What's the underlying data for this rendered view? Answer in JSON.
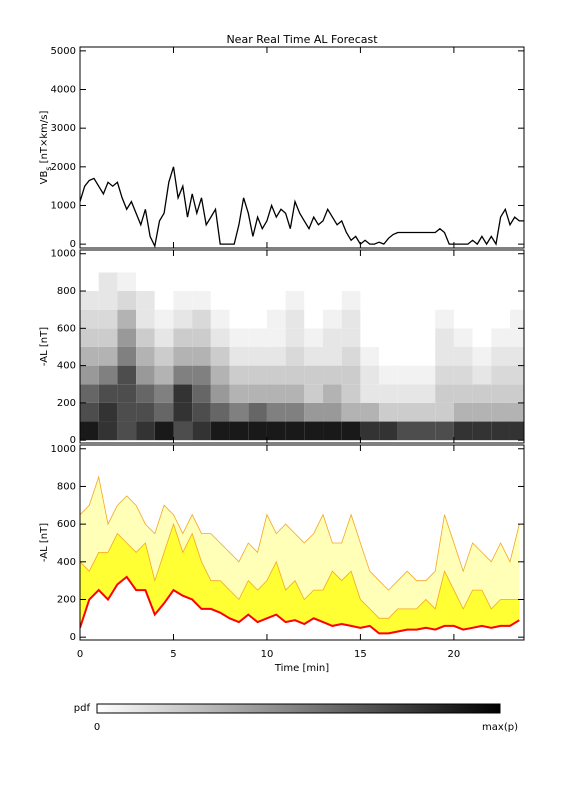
{
  "chart_data": [
    {
      "type": "line",
      "title": "Near Real Time AL Forecast",
      "ylabel": [
        "VB",
        "s",
        " [nT×km/s]"
      ],
      "color": "#000000",
      "xlim": [
        0,
        23.75
      ],
      "xticks": [
        0,
        5,
        10,
        15,
        20
      ],
      "ylim": [
        -100,
        5100
      ],
      "yticks": [
        0,
        1000,
        2000,
        3000,
        4000,
        5000
      ],
      "x": [
        0,
        0.25,
        0.5,
        0.75,
        1,
        1.25,
        1.5,
        1.75,
        2,
        2.25,
        2.5,
        2.75,
        3,
        3.25,
        3.5,
        3.75,
        4,
        4.25,
        4.5,
        4.75,
        5,
        5.25,
        5.5,
        5.75,
        6,
        6.25,
        6.5,
        6.75,
        7,
        7.25,
        7.5,
        7.75,
        8,
        8.25,
        8.5,
        8.75,
        9,
        9.25,
        9.5,
        9.75,
        10,
        10.25,
        10.5,
        10.75,
        11,
        11.25,
        11.5,
        11.75,
        12,
        12.25,
        12.5,
        12.75,
        13,
        13.25,
        13.5,
        13.75,
        14,
        14.25,
        14.5,
        14.75,
        15,
        15.25,
        15.5,
        15.75,
        16,
        16.25,
        16.5,
        16.75,
        17,
        17.25,
        17.5,
        17.75,
        18,
        18.25,
        18.5,
        18.75,
        19,
        19.25,
        19.5,
        19.75,
        20,
        20.25,
        20.5,
        20.75,
        21,
        21.25,
        21.5,
        21.75,
        22,
        22.25,
        22.5,
        22.75,
        23,
        23.25,
        23.5,
        23.75
      ],
      "values": [
        1100,
        1500,
        1650,
        1700,
        1500,
        1300,
        1600,
        1500,
        1600,
        1200,
        900,
        1100,
        800,
        500,
        900,
        200,
        -50,
        600,
        800,
        1600,
        2000,
        1200,
        1500,
        700,
        1300,
        800,
        1200,
        500,
        700,
        900,
        0,
        0,
        0,
        0,
        500,
        1200,
        800,
        200,
        700,
        400,
        600,
        1000,
        700,
        900,
        800,
        400,
        1100,
        800,
        600,
        400,
        700,
        500,
        600,
        900,
        700,
        500,
        600,
        300,
        100,
        200,
        0,
        100,
        0,
        0,
        50,
        0,
        150,
        250,
        300,
        300,
        300,
        300,
        300,
        300,
        300,
        300,
        300,
        400,
        300,
        0,
        0,
        0,
        0,
        0,
        100,
        0,
        200,
        0,
        200,
        0,
        700,
        900,
        500,
        700,
        600,
        600
      ]
    },
    {
      "type": "heatmap",
      "ylabel": "-AL [nT]",
      "xlim": [
        0,
        23.75
      ],
      "xticks": [
        0,
        5,
        10,
        15,
        20
      ],
      "ylim": [
        -15,
        1020
      ],
      "yticks": [
        0,
        200,
        400,
        600,
        800,
        1000
      ],
      "x_bins": [
        0,
        1,
        2,
        3,
        4,
        5,
        6,
        7,
        8,
        9,
        10,
        11,
        12,
        13,
        14,
        15,
        16,
        17,
        18,
        19,
        20,
        21,
        22,
        23,
        23.75
      ],
      "y_bins": [
        0,
        100,
        200,
        300,
        400,
        500,
        600,
        700,
        800,
        900,
        1000
      ],
      "z": [
        [
          0.9,
          0.8,
          0.7,
          0.8,
          0.9,
          0.7,
          0.8,
          0.9,
          0.9,
          0.9,
          0.9,
          0.9,
          0.9,
          0.9,
          0.9,
          0.8,
          0.8,
          0.7,
          0.7,
          0.7,
          0.8,
          0.8,
          0.8,
          0.8
        ],
        [
          0.7,
          0.8,
          0.7,
          0.7,
          0.6,
          0.8,
          0.7,
          0.6,
          0.5,
          0.6,
          0.5,
          0.5,
          0.4,
          0.4,
          0.3,
          0.3,
          0.2,
          0.2,
          0.2,
          0.2,
          0.3,
          0.3,
          0.3,
          0.3
        ],
        [
          0.6,
          0.7,
          0.7,
          0.6,
          0.5,
          0.8,
          0.6,
          0.4,
          0.3,
          0.3,
          0.3,
          0.3,
          0.2,
          0.3,
          0.2,
          0.1,
          0.1,
          0.1,
          0.1,
          0.2,
          0.2,
          0.2,
          0.2,
          0.2
        ],
        [
          0.4,
          0.5,
          0.7,
          0.4,
          0.3,
          0.5,
          0.5,
          0.3,
          0.2,
          0.2,
          0.2,
          0.2,
          0.2,
          0.2,
          0.2,
          0.1,
          0.05,
          0.05,
          0.05,
          0.15,
          0.15,
          0.1,
          0.15,
          0.15
        ],
        [
          0.3,
          0.3,
          0.5,
          0.3,
          0.2,
          0.3,
          0.3,
          0.2,
          0.1,
          0.1,
          0.1,
          0.15,
          0.1,
          0.1,
          0.15,
          0.05,
          0,
          0,
          0,
          0.1,
          0.1,
          0.05,
          0.1,
          0.1
        ],
        [
          0.2,
          0.2,
          0.4,
          0.2,
          0.1,
          0.2,
          0.2,
          0.1,
          0.05,
          0.05,
          0.05,
          0.1,
          0.05,
          0.1,
          0.1,
          0,
          0,
          0,
          0,
          0.1,
          0.05,
          0,
          0.05,
          0.05
        ],
        [
          0.15,
          0.15,
          0.3,
          0.1,
          0.05,
          0.1,
          0.15,
          0.05,
          0,
          0,
          0.05,
          0.1,
          0,
          0.05,
          0.1,
          0,
          0,
          0,
          0,
          0.05,
          0,
          0,
          0,
          0.05
        ],
        [
          0.1,
          0.1,
          0.15,
          0.1,
          0,
          0.05,
          0.05,
          0,
          0,
          0,
          0,
          0.05,
          0,
          0,
          0.05,
          0,
          0,
          0,
          0,
          0,
          0,
          0,
          0,
          0
        ],
        [
          0,
          0.1,
          0.05,
          0,
          0,
          0,
          0,
          0,
          0,
          0,
          0,
          0,
          0,
          0,
          0,
          0,
          0,
          0,
          0,
          0,
          0,
          0,
          0,
          0
        ],
        [
          0,
          0,
          0,
          0,
          0,
          0,
          0,
          0,
          0,
          0,
          0,
          0,
          0,
          0,
          0,
          0,
          0,
          0,
          0,
          0,
          0,
          0,
          0,
          0
        ]
      ],
      "zlim": [
        0,
        1
      ]
    },
    {
      "type": "band",
      "ylabel": "-AL [nT]",
      "xlabel": "Time [min]",
      "xlim": [
        0,
        23.75
      ],
      "xticks": [
        0,
        5,
        10,
        15,
        20
      ],
      "ylim": [
        -15,
        1020
      ],
      "yticks": [
        0,
        200,
        400,
        600,
        800,
        1000
      ],
      "x": [
        0,
        0.5,
        1,
        1.5,
        2,
        2.5,
        3,
        3.5,
        4,
        4.5,
        5,
        5.5,
        6,
        6.5,
        7,
        7.5,
        8,
        8.5,
        9,
        9.5,
        10,
        10.5,
        11,
        11.5,
        12,
        12.5,
        13,
        13.5,
        14,
        14.5,
        15,
        15.5,
        16,
        16.5,
        17,
        17.5,
        18,
        18.5,
        19,
        19.5,
        20,
        20.5,
        21,
        21.5,
        22,
        22.5,
        23,
        23.5
      ],
      "series": [
        {
          "color": "#ffffb8",
          "edge": "#f5a623",
          "values": [
            650,
            700,
            850,
            600,
            700,
            750,
            700,
            600,
            550,
            700,
            650,
            550,
            650,
            550,
            550,
            500,
            450,
            400,
            500,
            450,
            650,
            550,
            600,
            550,
            500,
            550,
            650,
            500,
            500,
            650,
            500,
            350,
            300,
            250,
            300,
            350,
            300,
            300,
            350,
            650,
            500,
            350,
            500,
            450,
            400,
            500,
            400,
            600
          ]
        },
        {
          "color": "#ffff33",
          "edge": "#f5a623",
          "values": [
            400,
            350,
            450,
            450,
            550,
            500,
            450,
            500,
            300,
            450,
            600,
            450,
            550,
            400,
            300,
            300,
            250,
            200,
            300,
            250,
            300,
            400,
            250,
            300,
            200,
            250,
            250,
            350,
            300,
            350,
            200,
            150,
            100,
            100,
            150,
            150,
            150,
            200,
            150,
            350,
            250,
            150,
            250,
            250,
            150,
            200,
            200,
            200
          ]
        },
        {
          "color": "#ff0000",
          "values": [
            50,
            200,
            250,
            200,
            280,
            320,
            250,
            250,
            120,
            180,
            250,
            220,
            200,
            150,
            150,
            130,
            100,
            80,
            120,
            80,
            100,
            120,
            80,
            90,
            70,
            100,
            80,
            60,
            70,
            60,
            50,
            60,
            20,
            20,
            30,
            40,
            40,
            50,
            40,
            60,
            60,
            40,
            50,
            60,
            50,
            60,
            60,
            90
          ]
        }
      ]
    }
  ],
  "colorbar": {
    "label": "pdf",
    "min_label": "0",
    "max_label": "max(p)"
  }
}
